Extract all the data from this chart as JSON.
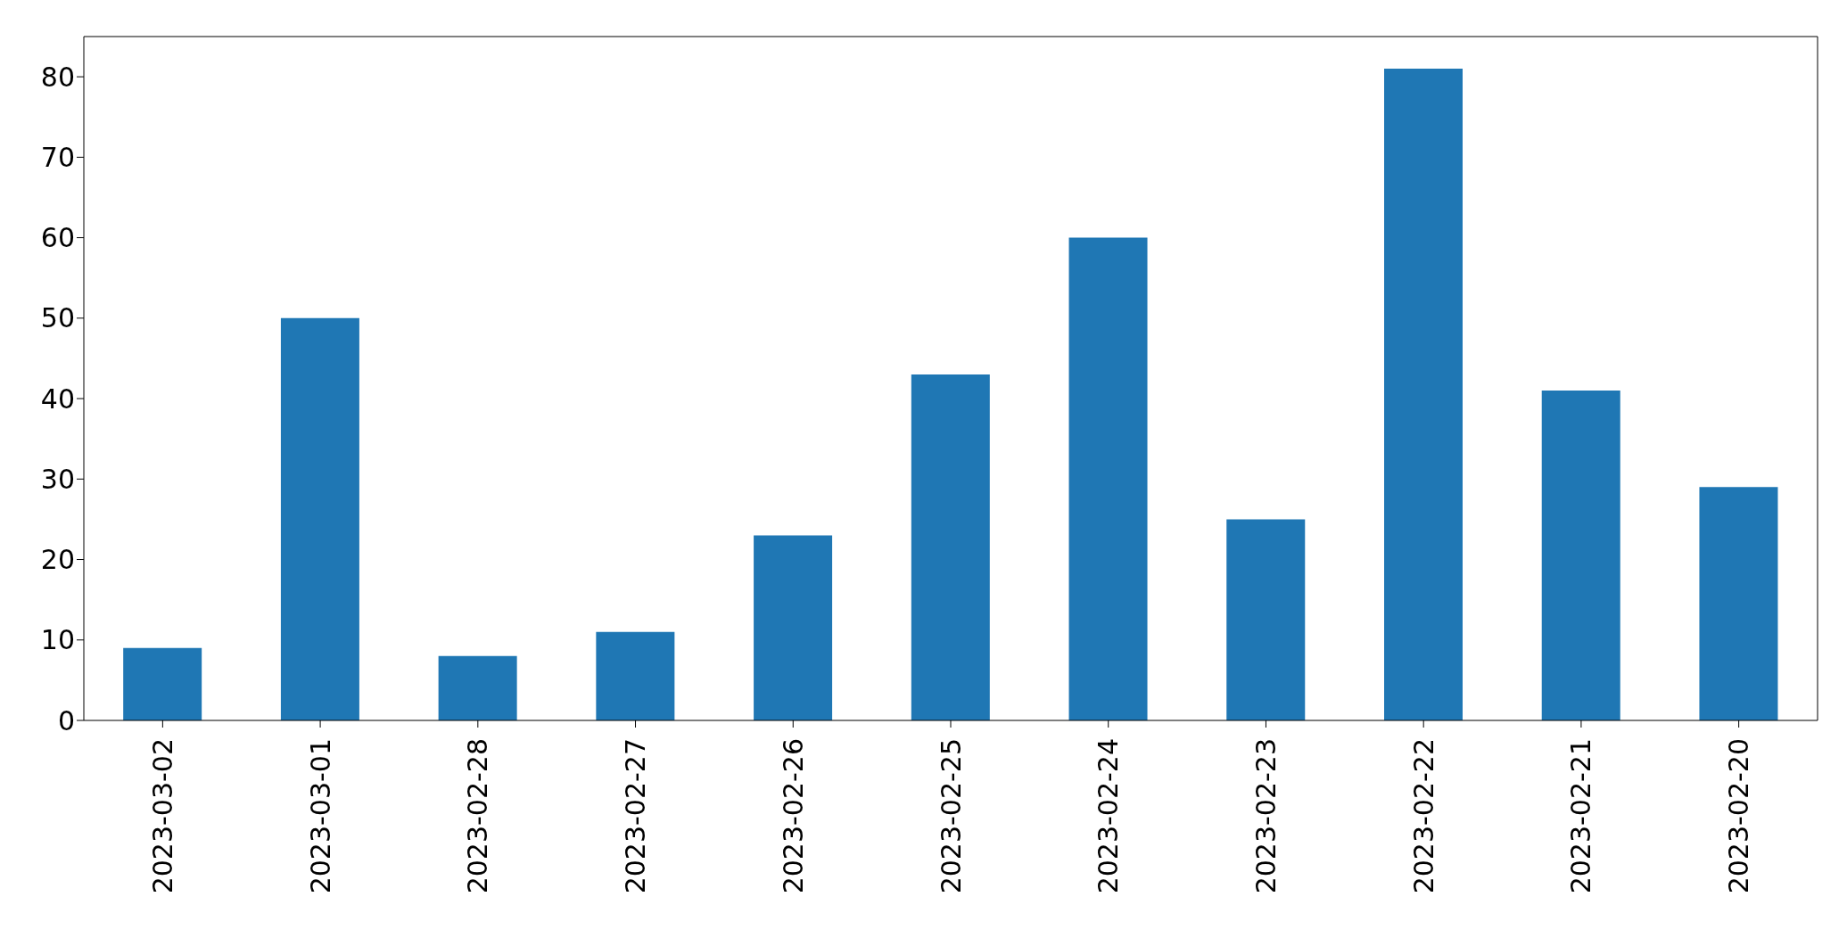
{
  "chart_data": {
    "type": "bar",
    "categories": [
      "2023-03-02",
      "2023-03-01",
      "2023-02-28",
      "2023-02-27",
      "2023-02-26",
      "2023-02-25",
      "2023-02-24",
      "2023-02-23",
      "2023-02-22",
      "2023-02-21",
      "2023-02-20"
    ],
    "values": [
      9,
      50,
      8,
      11,
      23,
      43,
      60,
      25,
      81,
      41,
      29
    ],
    "color": "#1f77b4",
    "ylim": [
      0,
      85
    ],
    "yticks": [
      0,
      10,
      20,
      30,
      40,
      50,
      60,
      70,
      80
    ],
    "grid": false
  }
}
